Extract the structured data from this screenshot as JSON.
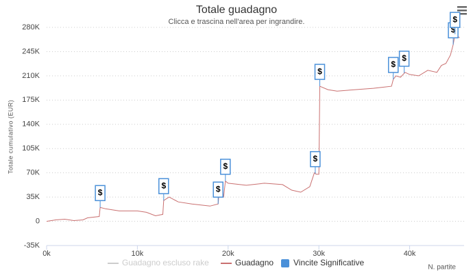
{
  "chart_data": {
    "type": "line",
    "title": "Totale guadagno",
    "subtitle": "Clicca e trascina nell'area per ingrandire.",
    "y_label": "Totale cumulativo (EUR)",
    "x_label": "N. partite",
    "xlim": [
      0,
      46000
    ],
    "ylim": [
      -35000,
      280000
    ],
    "xticks": [
      {
        "value": 0,
        "label": "0k"
      },
      {
        "value": 10000,
        "label": "10k"
      },
      {
        "value": 20000,
        "label": "20k"
      },
      {
        "value": 30000,
        "label": "30k"
      },
      {
        "value": 40000,
        "label": "40k"
      }
    ],
    "yticks": [
      {
        "value": -35000,
        "label": "-35K"
      },
      0,
      {
        "value": 35000,
        "label": "35K"
      },
      {
        "value": 70000,
        "label": "70K"
      },
      {
        "value": 105000,
        "label": "105K"
      },
      {
        "value": 140000,
        "label": "140K"
      },
      {
        "value": 175000,
        "label": "175K"
      },
      {
        "value": 210000,
        "label": "210K"
      },
      {
        "value": 245000,
        "label": "245K"
      },
      {
        "value": 280000,
        "label": "280K"
      }
    ],
    "grid": true,
    "series": [
      {
        "name": "Guadagno escluso rake",
        "color": "#cccccc",
        "visible": false
      },
      {
        "name": "Guadagno",
        "color": "#c96f6f",
        "visible": true,
        "x": [
          0,
          1000,
          2000,
          3000,
          4000,
          4500,
          5800,
          5900,
          6500,
          8000,
          10000,
          11000,
          12000,
          12800,
          12900,
          13500,
          14500,
          16000,
          18000,
          18900,
          19000,
          19500,
          19700,
          20000,
          22000,
          24000,
          26000,
          27000,
          28000,
          29000,
          29500,
          29700,
          30000,
          30100,
          31000,
          32000,
          34000,
          36000,
          38000,
          38200,
          38500,
          39000,
          39500,
          40000,
          41000,
          42000,
          43000,
          43500,
          44000,
          44500,
          44800,
          45000,
          45500
        ],
        "values": [
          0,
          2000,
          3000,
          1000,
          2000,
          5000,
          7000,
          20000,
          18000,
          15000,
          15000,
          13000,
          8000,
          10000,
          30000,
          35000,
          28000,
          25000,
          22000,
          25000,
          40000,
          35000,
          58000,
          55000,
          52000,
          55000,
          53000,
          45000,
          42000,
          50000,
          70000,
          68000,
          68000,
          195000,
          190000,
          188000,
          190000,
          192000,
          195000,
          205000,
          210000,
          208000,
          215000,
          212000,
          210000,
          218000,
          215000,
          225000,
          228000,
          240000,
          255000,
          270000,
          265000
        ]
      }
    ],
    "flags": {
      "name": "Vincite Significative",
      "color": "#4a90d9",
      "title": "$",
      "x": [
        5900,
        12900,
        18900,
        19700,
        29600,
        30100,
        38200,
        39400,
        44800,
        45000
      ],
      "values": [
        20000,
        30000,
        25000,
        58000,
        69000,
        195000,
        205000,
        214000,
        255000,
        270000
      ]
    }
  }
}
